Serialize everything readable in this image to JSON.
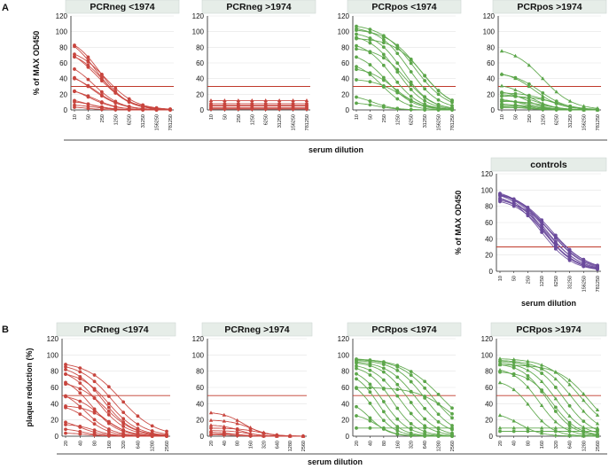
{
  "figure": {
    "panel_labels": [
      "A",
      "B"
    ]
  },
  "colors": {
    "red": "#c8453e",
    "green": "#5ca64a",
    "purple": "#6a4a9c",
    "threshold": "#c0392b",
    "title_bg": "#e6ede8"
  },
  "chart_data": [
    {
      "panel": "A",
      "type": "line",
      "ylabel": "% of MAX OD450",
      "xlabel": "serum dilution",
      "ylim": [
        0,
        120
      ],
      "yticks": [
        0,
        20,
        40,
        60,
        80,
        100,
        120
      ],
      "xcategories": [
        "10",
        "50",
        "250",
        "1250",
        "6250",
        "31250",
        "156250",
        "781250"
      ],
      "threshold": 30,
      "charts": [
        {
          "title": "PCRneg <1974",
          "color": "red",
          "series": [
            {
              "top": 100,
              "mid": 1.6,
              "s": 1.1,
              "marker": "circle"
            },
            {
              "top": 95,
              "mid": 1.9,
              "s": 1.0,
              "marker": "circle"
            },
            {
              "top": 85,
              "mid": 1.7,
              "s": 1.2,
              "marker": "circle"
            },
            {
              "top": 80,
              "mid": 2.3,
              "s": 1.1,
              "marker": "circle"
            },
            {
              "top": 76,
              "mid": 2.1,
              "s": 1.0,
              "marker": "circle"
            },
            {
              "top": 65,
              "mid": 1.4,
              "s": 1.0,
              "marker": "circle"
            },
            {
              "top": 55,
              "mid": 1.2,
              "s": 1.1,
              "marker": "circle"
            },
            {
              "top": 48,
              "mid": 1.6,
              "s": 1.0,
              "marker": "circle"
            },
            {
              "top": 33,
              "mid": 1.0,
              "s": 1.0,
              "marker": "circle"
            },
            {
              "top": 28,
              "mid": 1.5,
              "s": 0.9,
              "marker": "circle"
            },
            {
              "top": 17,
              "mid": 0.8,
              "s": 0.9,
              "marker": "circle"
            },
            {
              "top": 12,
              "mid": 1.4,
              "s": 0.8,
              "marker": "circle"
            },
            {
              "top": 7,
              "mid": 1.5,
              "s": 0.8,
              "marker": "circle"
            },
            {
              "top": 4,
              "mid": 1.0,
              "s": 0.6,
              "marker": "circle"
            }
          ]
        },
        {
          "title": "PCRneg >1974",
          "color": "red",
          "series": [
            {
              "top": 12,
              "mid": 99,
              "s": 1,
              "marker": "triangle"
            },
            {
              "top": 8,
              "mid": 99,
              "s": 1,
              "marker": "circle"
            },
            {
              "top": 6,
              "mid": 99,
              "s": 1,
              "marker": "circle"
            },
            {
              "top": 5,
              "mid": 99,
              "s": 1,
              "marker": "circle"
            },
            {
              "top": 3,
              "mid": 99,
              "s": 1,
              "marker": "circle"
            },
            {
              "top": 2,
              "mid": 99,
              "s": 1,
              "marker": "circle"
            },
            {
              "top": 1,
              "mid": 99,
              "s": 1,
              "marker": "circle"
            }
          ]
        },
        {
          "title": "PCRpos <1974",
          "color": "green",
          "series": [
            {
              "top": 110,
              "mid": 4.2,
              "s": 1.2,
              "marker": "circle"
            },
            {
              "top": 107,
              "mid": 3.8,
              "s": 1.1,
              "marker": "circle"
            },
            {
              "top": 104,
              "mid": 4.6,
              "s": 1.2,
              "marker": "circle"
            },
            {
              "top": 100,
              "mid": 3.4,
              "s": 1.0,
              "marker": "circle"
            },
            {
              "top": 97,
              "mid": 3.0,
              "s": 1.0,
              "marker": "circle"
            },
            {
              "top": 92,
              "mid": 4.9,
              "s": 1.1,
              "marker": "circle"
            },
            {
              "top": 88,
              "mid": 2.6,
              "s": 1.0,
              "marker": "circle"
            },
            {
              "top": 80,
              "mid": 3.6,
              "s": 1.0,
              "marker": "circle"
            },
            {
              "top": 75,
              "mid": 2.2,
              "s": 1.0,
              "marker": "circle"
            },
            {
              "top": 62,
              "mid": 1.9,
              "s": 0.9,
              "marker": "circle"
            },
            {
              "top": 55,
              "mid": 2.8,
              "s": 1.0,
              "marker": "circle"
            },
            {
              "top": 40,
              "mid": 3.2,
              "s": 1.0,
              "marker": "circle"
            },
            {
              "top": 20,
              "mid": 1.2,
              "s": 0.8,
              "marker": "circle"
            },
            {
              "top": 10,
              "mid": 1.5,
              "s": 0.8,
              "marker": "circle"
            }
          ]
        },
        {
          "title": "PCRpos >1974",
          "color": "green",
          "series": [
            {
              "top": 80,
              "mid": 3.0,
              "s": 1.1,
              "marker": "triangle"
            },
            {
              "top": 50,
              "mid": 2.4,
              "s": 1.0,
              "marker": "triangle"
            },
            {
              "top": 48,
              "mid": 2.8,
              "s": 1.0,
              "marker": "circle"
            },
            {
              "top": 34,
              "mid": 2.0,
              "s": 0.9,
              "marker": "triangle"
            },
            {
              "top": 25,
              "mid": 1.8,
              "s": 0.8,
              "marker": "circle"
            },
            {
              "top": 22,
              "mid": 3.5,
              "s": 0.9,
              "marker": "circle"
            },
            {
              "top": 20,
              "mid": 2.6,
              "s": 0.8,
              "marker": "triangle"
            },
            {
              "top": 18,
              "mid": 4.0,
              "s": 1.0,
              "marker": "circle"
            },
            {
              "top": 15,
              "mid": 1.6,
              "s": 0.8,
              "marker": "circle"
            },
            {
              "top": 13,
              "mid": 2.2,
              "s": 0.8,
              "marker": "triangle"
            },
            {
              "top": 11,
              "mid": 3.2,
              "s": 0.8,
              "marker": "circle"
            },
            {
              "top": 9,
              "mid": 1.4,
              "s": 0.8,
              "marker": "circle"
            },
            {
              "top": 7,
              "mid": 2.4,
              "s": 0.7,
              "marker": "circle"
            },
            {
              "top": 5,
              "mid": 3.0,
              "s": 0.7,
              "marker": "circle"
            },
            {
              "top": 4,
              "mid": 1.8,
              "s": 0.6,
              "marker": "circle"
            },
            {
              "top": 3,
              "mid": 2.8,
              "s": 0.6,
              "marker": "circle"
            }
          ]
        },
        {
          "title": "controls",
          "color": "purple",
          "series": [
            {
              "top": 102,
              "mid": 3.3,
              "s": 1.2,
              "marker": "circle"
            },
            {
              "top": 101,
              "mid": 3.5,
              "s": 1.3,
              "marker": "circle"
            },
            {
              "top": 100,
              "mid": 3.1,
              "s": 1.2,
              "marker": "circle"
            },
            {
              "top": 100,
              "mid": 3.7,
              "s": 1.3,
              "marker": "circle"
            },
            {
              "top": 99,
              "mid": 3.2,
              "s": 1.1,
              "marker": "circle"
            },
            {
              "top": 98,
              "mid": 3.6,
              "s": 1.2,
              "marker": "circle"
            },
            {
              "top": 96,
              "mid": 3.0,
              "s": 1.1,
              "marker": "circle"
            },
            {
              "top": 94,
              "mid": 3.4,
              "s": 1.2,
              "marker": "circle"
            },
            {
              "top": 92,
              "mid": 3.8,
              "s": 1.3,
              "marker": "circle"
            },
            {
              "top": 90,
              "mid": 3.3,
              "s": 1.1,
              "marker": "circle"
            }
          ]
        }
      ]
    },
    {
      "panel": "B",
      "type": "line",
      "ylabel": "plaque reduction (%)",
      "xlabel": "serum dilution",
      "ylim": [
        0,
        120
      ],
      "yticks": [
        0,
        20,
        40,
        60,
        80,
        100,
        120
      ],
      "xcategories": [
        "20",
        "40",
        "80",
        "160",
        "320",
        "640",
        "1280",
        "2560"
      ],
      "threshold": 50,
      "charts": [
        {
          "title": "PCRneg <1974",
          "color": "red",
          "series": [
            {
              "top": 92,
              "mid": 3.8,
              "s": 1.2,
              "marker": "circle"
            },
            {
              "top": 90,
              "mid": 3.2,
              "s": 1.1,
              "marker": "circle"
            },
            {
              "top": 88,
              "mid": 2.6,
              "s": 1.0,
              "marker": "circle"
            },
            {
              "top": 85,
              "mid": 2.2,
              "s": 1.0,
              "marker": "circle"
            },
            {
              "top": 80,
              "mid": 3.0,
              "s": 1.0,
              "marker": "circle"
            },
            {
              "top": 75,
              "mid": 1.8,
              "s": 0.9,
              "marker": "circle"
            },
            {
              "top": 68,
              "mid": 2.8,
              "s": 1.0,
              "marker": "circle"
            },
            {
              "top": 60,
              "mid": 1.4,
              "s": 0.9,
              "marker": "circle"
            },
            {
              "top": 52,
              "mid": 2.4,
              "s": 0.9,
              "marker": "circle"
            },
            {
              "top": 40,
              "mid": 1.6,
              "s": 0.8,
              "marker": "circle"
            },
            {
              "top": 38,
              "mid": 2.9,
              "s": 0.8,
              "marker": "circle"
            },
            {
              "top": 22,
              "mid": 1.0,
              "s": 0.8,
              "marker": "circle"
            },
            {
              "top": 15,
              "mid": 2.0,
              "s": 0.7,
              "marker": "circle"
            },
            {
              "top": 10,
              "mid": 1.2,
              "s": 0.7,
              "marker": "circle"
            },
            {
              "top": 4,
              "mid": 1.5,
              "s": 0.6,
              "marker": "circle"
            }
          ]
        },
        {
          "title": "PCRneg >1974",
          "color": "red",
          "series": [
            {
              "top": 30,
              "mid": 2.5,
              "s": 0.8,
              "marker": "triangle"
            },
            {
              "top": 20,
              "mid": 3.0,
              "s": 0.8,
              "marker": "triangle"
            },
            {
              "top": 14,
              "mid": 2.2,
              "s": 0.7,
              "marker": "triangle"
            },
            {
              "top": 10,
              "mid": 3.6,
              "s": 0.8,
              "marker": "circle"
            },
            {
              "top": 7,
              "mid": 2.8,
              "s": 0.7,
              "marker": "triangle"
            },
            {
              "top": 5,
              "mid": 1.8,
              "s": 0.6,
              "marker": "circle"
            },
            {
              "top": 3,
              "mid": 2.4,
              "s": 0.6,
              "marker": "triangle"
            },
            {
              "top": 2,
              "mid": 1.6,
              "s": 0.5,
              "marker": "circle"
            }
          ]
        },
        {
          "title": "PCRpos <1974",
          "color": "green",
          "series": [
            {
              "top": 96,
              "mid": 6.2,
              "s": 1.4,
              "marker": "circle"
            },
            {
              "top": 95,
              "mid": 5.6,
              "s": 1.2,
              "marker": "circle"
            },
            {
              "top": 94,
              "mid": 5.0,
              "s": 1.1,
              "marker": "circle"
            },
            {
              "top": 93,
              "mid": 4.4,
              "s": 1.1,
              "marker": "circle"
            },
            {
              "top": 92,
              "mid": 3.8,
              "s": 1.0,
              "marker": "circle"
            },
            {
              "top": 90,
              "mid": 3.2,
              "s": 1.0,
              "marker": "circle"
            },
            {
              "top": 88,
              "mid": 2.6,
              "s": 0.9,
              "marker": "circle"
            },
            {
              "top": 85,
              "mid": 2.0,
              "s": 0.9,
              "marker": "circle"
            },
            {
              "top": 80,
              "mid": 1.6,
              "s": 0.8,
              "marker": "circle"
            },
            {
              "top": 72,
              "mid": 1.2,
              "s": 0.8,
              "marker": "circle"
            },
            {
              "top": 60,
              "mid": 6.8,
              "s": 1.2,
              "marker": "circle"
            },
            {
              "top": 45,
              "mid": 1.0,
              "s": 0.7,
              "marker": "circle"
            },
            {
              "top": 28,
              "mid": 1.5,
              "s": 0.7,
              "marker": "circle"
            },
            {
              "top": 10,
              "mid": 99,
              "s": 1,
              "marker": "circle"
            }
          ]
        },
        {
          "title": "PCRpos >1974",
          "color": "green",
          "series": [
            {
              "top": 96,
              "mid": 5.8,
              "s": 1.2,
              "marker": "triangle"
            },
            {
              "top": 94,
              "mid": 5.2,
              "s": 1.1,
              "marker": "triangle"
            },
            {
              "top": 93,
              "mid": 4.6,
              "s": 1.0,
              "marker": "circle"
            },
            {
              "top": 92,
              "mid": 4.0,
              "s": 1.0,
              "marker": "triangle"
            },
            {
              "top": 90,
              "mid": 3.4,
              "s": 0.9,
              "marker": "circle"
            },
            {
              "top": 88,
              "mid": 6.4,
              "s": 1.1,
              "marker": "triangle"
            },
            {
              "top": 85,
              "mid": 2.8,
              "s": 0.9,
              "marker": "triangle"
            },
            {
              "top": 80,
              "mid": 3.8,
              "s": 0.9,
              "marker": "circle"
            },
            {
              "top": 70,
              "mid": 2.2,
              "s": 0.8,
              "marker": "triangle"
            },
            {
              "top": 30,
              "mid": 1.4,
              "s": 0.8,
              "marker": "triangle"
            },
            {
              "top": 10,
              "mid": 99,
              "s": 1,
              "marker": "triangle"
            },
            {
              "top": 6,
              "mid": 99,
              "s": 1,
              "marker": "circle"
            }
          ]
        }
      ]
    }
  ]
}
